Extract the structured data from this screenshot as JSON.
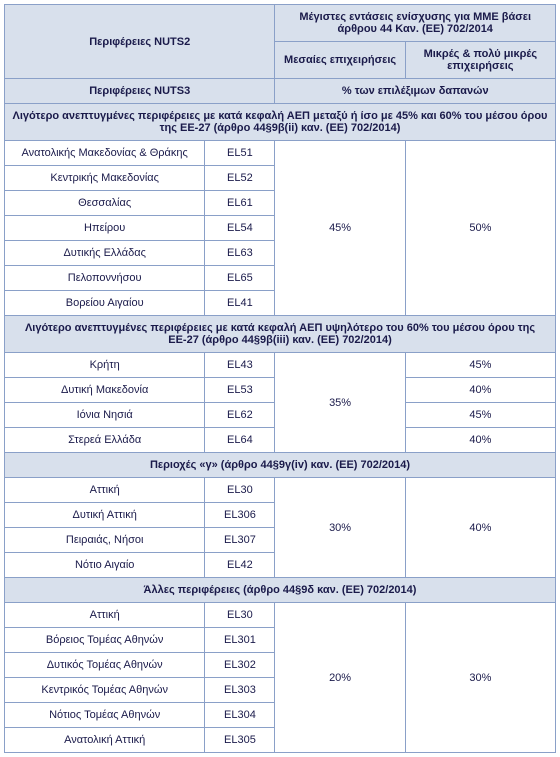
{
  "headers": {
    "regions2": "Περιφέρειες NUTS2",
    "topTitle": "Μέγιστες εντάσεις ενίσχυσης για ΜΜΕ βάσει άρθρου 44 Καν. (ΕΕ) 702/2014",
    "medium": "Μεσαίες επιχειρήσεις",
    "small": "Μικρές & πολύ μικρές επιχειρήσεις",
    "regions3": "Περιφέρειες NUTS3",
    "eligible": "% των επιλέξιμων δαπανών"
  },
  "sections": [
    {
      "title": "Λιγότερο ανεπτυγμένες περιφέρειες με κατά κεφαλή ΑΕΠ μεταξύ ή ίσο με 45% και 60% του μέσου όρου της ΕΕ-27 (άρθρο 44§9β(ii) καν. (ΕΕ) 702/2014)",
      "mergedMedium": "45%",
      "mergedSmall": "50%",
      "rows": [
        {
          "name": "Ανατολικής Μακεδονίας & Θράκης",
          "code": "EL51"
        },
        {
          "name": "Κεντρικής Μακεδονίας",
          "code": "EL52"
        },
        {
          "name": "Θεσσαλίας",
          "code": "EL61"
        },
        {
          "name": "Ηπείρου",
          "code": "EL54"
        },
        {
          "name": "Δυτικής Ελλάδας",
          "code": "EL63"
        },
        {
          "name": "Πελοποννήσου",
          "code": "EL65"
        },
        {
          "name": "Βορείου Αιγαίου",
          "code": "EL41"
        }
      ]
    },
    {
      "title": "Λιγότερο ανεπτυγμένες περιφέρειες με κατά κεφαλή ΑΕΠ υψηλότερο του 60% του μέσου όρου της ΕΕ-27 (άρθρο 44§9β(iii) καν. (ΕΕ) 702/2014)",
      "mergedMedium": "35%",
      "rows": [
        {
          "name": "Κρήτη",
          "code": "EL43",
          "small": "45%"
        },
        {
          "name": "Δυτική Μακεδονία",
          "code": "EL53",
          "small": "40%"
        },
        {
          "name": "Ιόνια Νησιά",
          "code": "EL62",
          "small": "45%"
        },
        {
          "name": "Στερεά Ελλάδα",
          "code": "EL64",
          "small": "40%"
        }
      ]
    },
    {
      "title": "Περιοχές «γ» (άρθρο 44§9γ(iv) καν. (ΕΕ) 702/2014)",
      "mergedMedium": "30%",
      "mergedSmall": "40%",
      "rows": [
        {
          "name": "Αττική",
          "code": "EL30"
        },
        {
          "name": "Δυτική Αττική",
          "code": "EL306"
        },
        {
          "name": "Πειραιάς, Νήσοι",
          "code": "EL307"
        },
        {
          "name": "Νότιο Αιγαίο",
          "code": "EL42"
        }
      ]
    },
    {
      "title": "Άλλες περιφέρειες (άρθρο 44§9δ καν. (ΕΕ) 702/2014)",
      "mergedMedium": "20%",
      "mergedSmall": "30%",
      "rows": [
        {
          "name": "Αττική",
          "code": "EL30"
        },
        {
          "name": "Βόρειος Τομέας Αθηνών",
          "code": "EL301"
        },
        {
          "name": "Δυτικός Τομέας Αθηνών",
          "code": "EL302"
        },
        {
          "name": "Κεντρικός Τομέας Αθηνών",
          "code": "EL303"
        },
        {
          "name": "Νότιος Τομέας Αθηνών",
          "code": "EL304"
        },
        {
          "name": "Ανατολική Αττική",
          "code": "EL305"
        }
      ]
    }
  ]
}
